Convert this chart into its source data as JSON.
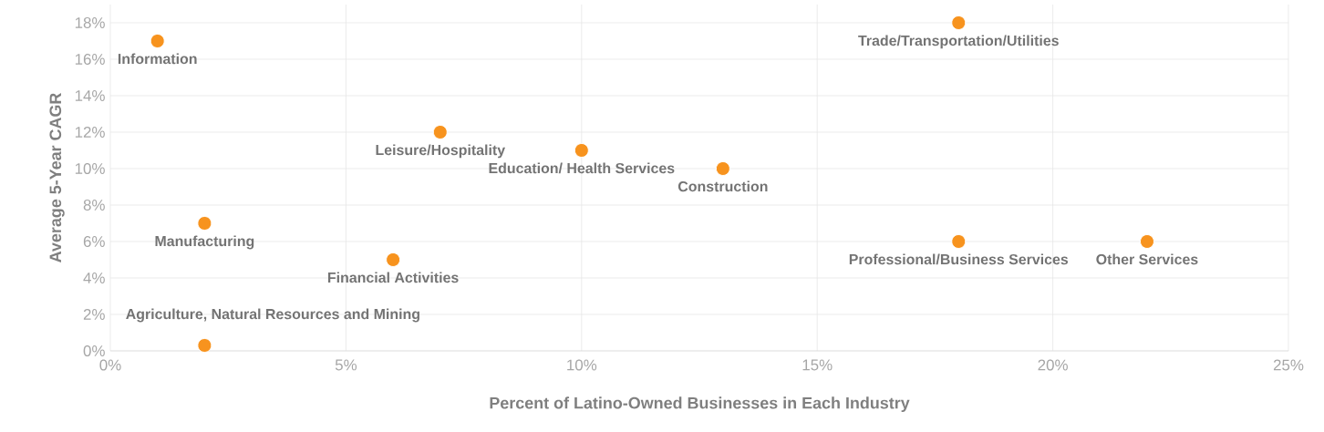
{
  "chart_data": {
    "type": "scatter",
    "xlabel": "Percent of Latino-Owned Businesses in Each Industry",
    "ylabel": "Average 5-Year CAGR",
    "x": [
      1,
      18,
      7,
      10,
      13,
      2,
      6,
      18,
      22,
      2
    ],
    "values": [
      17,
      18,
      12,
      11,
      10,
      7,
      5,
      6,
      6,
      0.3
    ],
    "color": "#f7931e",
    "grid": true,
    "xlim": [
      0,
      25
    ],
    "ylim": [
      0,
      19
    ],
    "xticks": [
      {
        "value": 0,
        "label": "0%"
      },
      {
        "value": 5,
        "label": "5%"
      },
      {
        "value": 10,
        "label": "10%"
      },
      {
        "value": 15,
        "label": "15%"
      },
      {
        "value": 20,
        "label": "20%"
      },
      {
        "value": 25,
        "label": "25%"
      }
    ],
    "yticks": [
      {
        "value": 0,
        "label": "0%"
      },
      {
        "value": 2,
        "label": "2%"
      },
      {
        "value": 4,
        "label": "4%"
      },
      {
        "value": 6,
        "label": "6%"
      },
      {
        "value": 8,
        "label": "8%"
      },
      {
        "value": 10,
        "label": "10%"
      },
      {
        "value": 12,
        "label": "12%"
      },
      {
        "value": 14,
        "label": "14%"
      },
      {
        "value": 16,
        "label": "16%"
      },
      {
        "value": 18,
        "label": "18%"
      }
    ],
    "annotations": [
      {
        "text": "Information",
        "x": 1,
        "y": 17
      },
      {
        "text": "Trade/Transportation/Utilities",
        "x": 18,
        "y": 18
      },
      {
        "text": "Leisure/Hospitality",
        "x": 7,
        "y": 12
      },
      {
        "text": "Education/ Health Services",
        "x": 10,
        "y": 11
      },
      {
        "text": "Construction",
        "x": 13,
        "y": 10
      },
      {
        "text": "Manufacturing",
        "x": 2,
        "y": 7
      },
      {
        "text": "Financial Activities",
        "x": 6,
        "y": 5
      },
      {
        "text": "Professional/Business Services",
        "x": 18,
        "y": 6
      },
      {
        "text": "Other Services",
        "x": 22,
        "y": 6
      },
      {
        "text": "Agriculture, Natural Resources and Mining",
        "x": 2,
        "y": 0.3
      }
    ]
  }
}
